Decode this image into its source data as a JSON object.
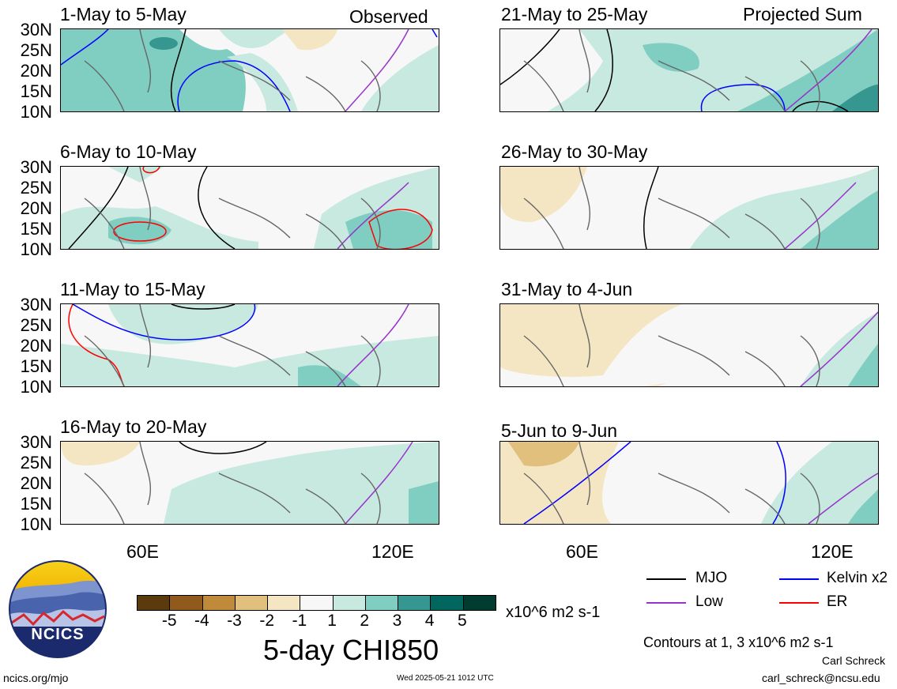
{
  "header": {
    "left_tag": "Observed",
    "right_tag": "Projected Sum"
  },
  "panels_left": [
    {
      "title": "1-May to 5-May"
    },
    {
      "title": "6-May to 10-May"
    },
    {
      "title": "11-May to 15-May"
    },
    {
      "title": "16-May to 20-May"
    }
  ],
  "panels_right": [
    {
      "title": "21-May to 25-May"
    },
    {
      "title": "26-May to 30-May"
    },
    {
      "title": "31-May to 4-Jun"
    },
    {
      "title": "5-Jun to 9-Jun"
    }
  ],
  "lat_ticks": [
    "30N",
    "25N",
    "20N",
    "15N",
    "10N"
  ],
  "lon_ticks": [
    "60E",
    "120E"
  ],
  "colorbar": {
    "colors": [
      "#5b3a0e",
      "#8f5a1c",
      "#bf8a3a",
      "#e1c07e",
      "#f5e6c3",
      "#f7f7f7",
      "#c7e9e0",
      "#80cdc1",
      "#35978f",
      "#01665e",
      "#003c30"
    ],
    "tick_labels": [
      "-5",
      "-4",
      "-3",
      "-2",
      "-1",
      "1",
      "2",
      "3",
      "4",
      "5"
    ],
    "units": "x10^6 m2 s-1",
    "title": "5-day CHI850"
  },
  "legend": {
    "items": [
      {
        "label": "MJO",
        "color": "#000000"
      },
      {
        "label": "Kelvin x2",
        "color": "#0000ff"
      },
      {
        "label": "Low",
        "color": "#9932cc"
      },
      {
        "label": "ER",
        "color": "#ff0000"
      }
    ],
    "contour_note": "Contours at 1, 3 x10^6 m2 s-1"
  },
  "logo": {
    "text": "NCICS"
  },
  "footer": {
    "url": "ncics.org/mjo",
    "timestamp": "Wed 2025-05-21 1012 UTC",
    "author": "Carl Schreck",
    "email": "carl_schreck@ncsu.edu"
  }
}
